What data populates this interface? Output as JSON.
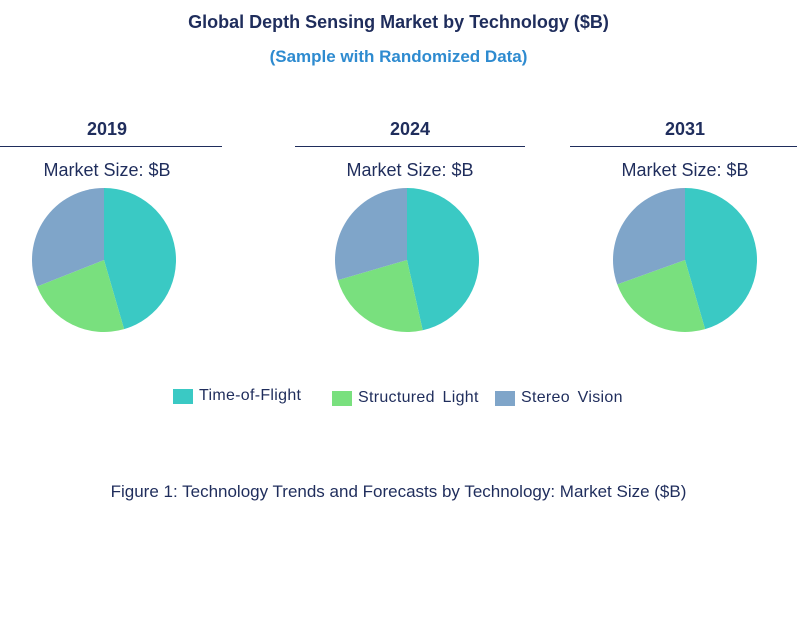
{
  "chart_data": {
    "type": "pie",
    "title": "Global Depth Sensing Market by Technology ($B)",
    "subtitle": "(Sample with Randomized Data)",
    "caption": "Figure 1: Technology Trends and Forecasts by Technology: Market Size ($B)",
    "legend": [
      "Time-of-Flight",
      "Structured Light",
      "Stereo Vision"
    ],
    "colors": [
      "#3ac9c4",
      "#79e07e",
      "#7fa5c9"
    ],
    "pies": [
      {
        "year": "2019",
        "label": "Market Size: $B",
        "values": [
          45.5,
          23.5,
          31.0
        ]
      },
      {
        "year": "2024",
        "label": "Market Size: $B",
        "values": [
          46.5,
          24.0,
          29.5
        ]
      },
      {
        "year": "2031",
        "label": "Market Size: $B",
        "values": [
          45.5,
          24.0,
          30.5
        ]
      }
    ]
  }
}
